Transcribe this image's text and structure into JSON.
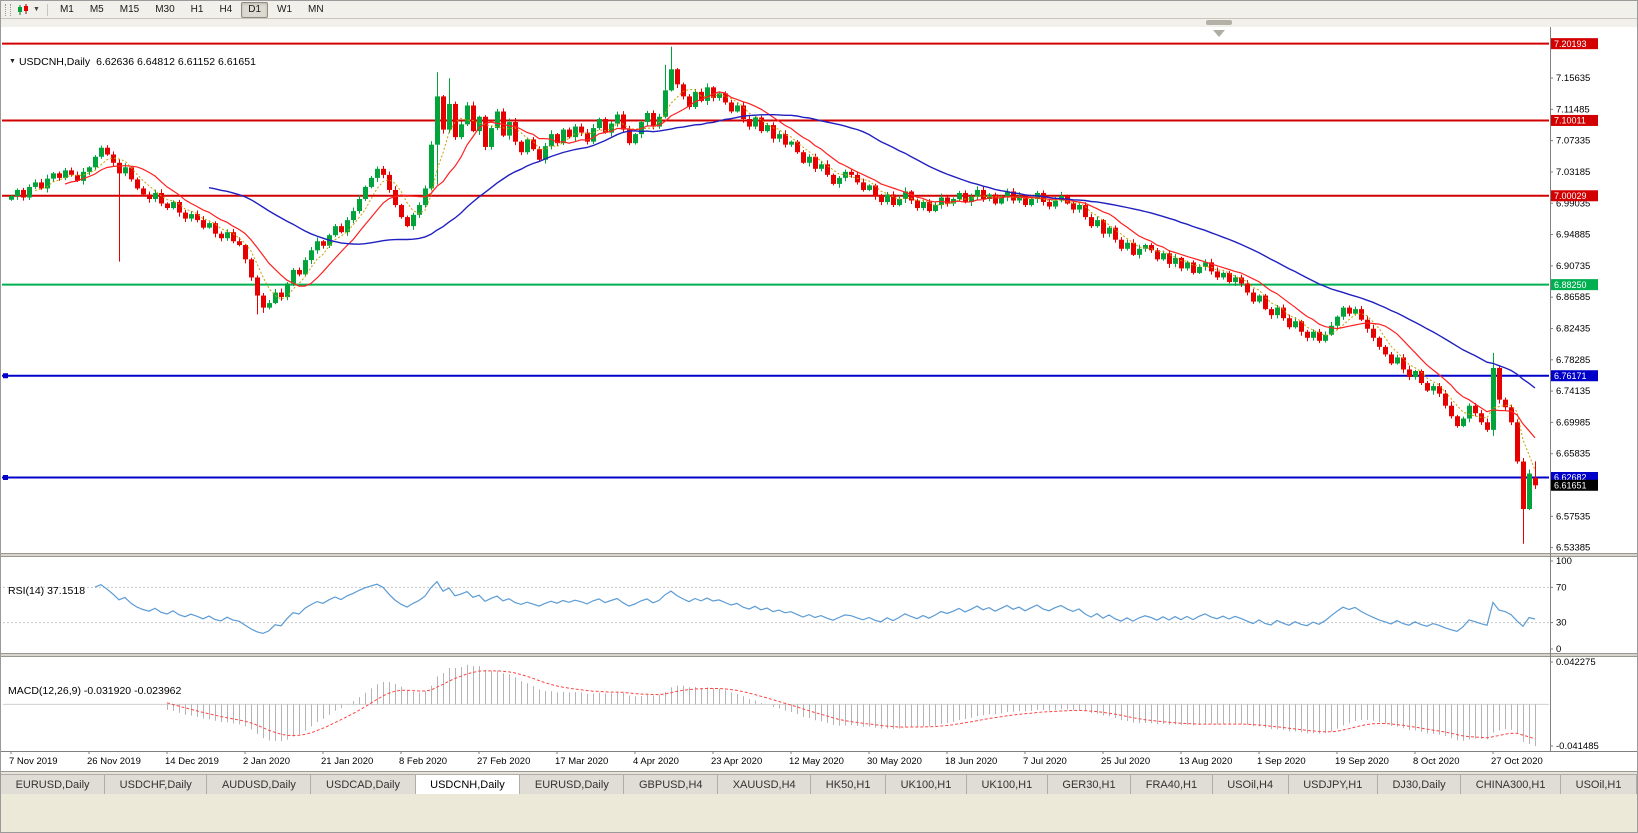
{
  "toolbar": {
    "timeframes": [
      "M1",
      "M5",
      "M15",
      "M30",
      "H1",
      "H4",
      "D1",
      "W1",
      "MN"
    ],
    "active_timeframe": "D1"
  },
  "header": {
    "symbol_period": "USDCNH,Daily",
    "ohlc": "6.62636 6.64812 6.61152 6.61651"
  },
  "rsi_panel": {
    "label": "RSI(14) 37.1518",
    "levels": [
      "100",
      "70",
      "30",
      "0"
    ],
    "level_values": [
      100,
      70,
      30,
      0
    ]
  },
  "macd_panel": {
    "label": "MACD(12,26,9) -0.031920 -0.023962",
    "axis_max_label": "0.042275",
    "axis_min_label": "-0.041485",
    "axis_max": 0.042275,
    "axis_min": -0.041485
  },
  "colors": {
    "up": "#00A43B",
    "down": "#E60000",
    "ma_fast": "#FF2020",
    "ma_dotted": "#C8A000",
    "ma_slow": "#2020C0",
    "rsi_line": "#5B9BD5",
    "macd_hist": "#B4B4B4",
    "macd_signal": "#FF4444",
    "level_red": "#D20000",
    "level_green": "#00B050",
    "level_blue": "#0000C8",
    "current_tag_bg": "#000000"
  },
  "chart_data": {
    "type": "candlestick",
    "symbol": "USDCNH",
    "timeframe": "Daily",
    "last_ohlc": {
      "open": 6.62636,
      "high": 6.64812,
      "low": 6.61152,
      "close": 6.61651
    },
    "ylim": [
      6.5267,
      7.224
    ],
    "price_axis_labels": [
      "7.15635",
      "7.11485",
      "7.07335",
      "7.03185",
      "6.99035",
      "6.94885",
      "6.90735",
      "6.86585",
      "6.82435",
      "6.78285",
      "6.74135",
      "6.69985",
      "6.65835",
      "6.61685",
      "6.57535",
      "6.53385"
    ],
    "x_labels": [
      "7 Nov 2019",
      "26 Nov 2019",
      "14 Dec 2019",
      "2 Jan 2020",
      "21 Jan 2020",
      "8 Feb 2020",
      "27 Feb 2020",
      "17 Mar 2020",
      "4 Apr 2020",
      "23 Apr 2020",
      "12 May 2020",
      "30 May 2020",
      "18 Jun 2020",
      "7 Jul 2020",
      "25 Jul 2020",
      "13 Aug 2020",
      "1 Sep 2020",
      "19 Sep 2020",
      "8 Oct 2020",
      "27 Oct 2020"
    ],
    "x_label_interval": 13,
    "first_open": 6.995,
    "closes": [
      7.0,
      7.008,
      6.998,
      7.012,
      7.018,
      7.01,
      7.023,
      7.03,
      7.024,
      7.034,
      7.028,
      7.02,
      7.032,
      7.038,
      7.052,
      7.064,
      7.055,
      7.044,
      7.03,
      7.038,
      7.022,
      7.01,
      7.002,
      6.996,
      7.004,
      6.99,
      6.984,
      6.992,
      6.978,
      6.97,
      6.976,
      6.968,
      6.958,
      6.964,
      6.95,
      6.944,
      6.952,
      6.94,
      6.935,
      6.916,
      6.892,
      6.868,
      6.852,
      6.858,
      6.872,
      6.866,
      6.884,
      6.902,
      6.896,
      6.915,
      6.928,
      6.94,
      6.934,
      6.948,
      6.96,
      6.952,
      6.968,
      6.98,
      6.996,
      7.012,
      7.024,
      7.036,
      7.028,
      7.008,
      6.988,
      6.972,
      6.96,
      6.975,
      6.988,
      7.01,
      7.068,
      7.132,
      7.088,
      7.122,
      7.078,
      7.095,
      7.12,
      7.086,
      7.105,
      7.065,
      7.09,
      7.112,
      7.08,
      7.098,
      7.072,
      7.058,
      7.075,
      7.062,
      7.048,
      7.066,
      7.082,
      7.07,
      7.088,
      7.078,
      7.092,
      7.084,
      7.072,
      7.09,
      7.102,
      7.084,
      7.096,
      7.108,
      7.088,
      7.07,
      7.082,
      7.098,
      7.11,
      7.092,
      7.105,
      7.14,
      7.168,
      7.148,
      7.132,
      7.118,
      7.138,
      7.126,
      7.144,
      7.13,
      7.136,
      7.124,
      7.112,
      7.12,
      7.102,
      7.092,
      7.104,
      7.086,
      7.094,
      7.076,
      7.082,
      7.068,
      7.072,
      7.058,
      7.044,
      7.052,
      7.036,
      7.042,
      7.028,
      7.016,
      7.024,
      7.032,
      7.028,
      7.018,
      7.008,
      7.014,
      7.0,
      6.992,
      7.002,
      6.988,
      6.996,
      7.006,
      6.994,
      6.984,
      6.992,
      6.98,
      6.988,
      6.998,
      6.99,
      6.996,
      7.004,
      6.992,
      6.999,
      7.008,
      6.996,
      7.002,
      6.99,
      6.998,
      7.006,
      6.994,
      7.0,
      6.988,
      6.996,
      7.004,
      6.992,
      6.986,
      6.994,
      7.0,
      6.99,
      6.982,
      6.988,
      6.972,
      6.96,
      6.968,
      6.95,
      6.958,
      6.942,
      6.93,
      6.938,
      6.922,
      6.93,
      6.935,
      6.928,
      6.916,
      6.924,
      6.91,
      6.918,
      6.904,
      6.912,
      6.898,
      6.906,
      6.912,
      6.9,
      6.892,
      6.898,
      6.886,
      6.892,
      6.884,
      6.872,
      6.86,
      6.868,
      6.85,
      6.842,
      6.852,
      6.838,
      6.826,
      6.834,
      6.82,
      6.812,
      6.82,
      6.808,
      6.816,
      6.828,
      6.84,
      6.852,
      6.844,
      6.85,
      6.836,
      6.824,
      6.812,
      6.8,
      6.79,
      6.778,
      6.786,
      6.77,
      6.76,
      6.768,
      6.752,
      6.742,
      6.748,
      6.738,
      6.722,
      6.708,
      6.695,
      6.705,
      6.722,
      6.712,
      6.7,
      6.69,
      6.772,
      6.73,
      6.72,
      6.7,
      6.648,
      6.585,
      6.632,
      6.6165
    ],
    "overrides": [
      {
        "i": 18,
        "low": 6.913
      },
      {
        "i": 41,
        "low": 6.843
      },
      {
        "i": 42,
        "low": 6.845
      },
      {
        "i": 71,
        "high": 7.164,
        "low": 7.015
      },
      {
        "i": 73,
        "high": 7.156
      },
      {
        "i": 109,
        "high": 7.174
      },
      {
        "i": 110,
        "high": 7.198
      },
      {
        "i": 247,
        "high": 6.792,
        "low": 6.682
      },
      {
        "i": 252,
        "low": 6.539
      },
      {
        "i": 254,
        "open": 6.62636,
        "high": 6.64812,
        "low": 6.61152
      }
    ],
    "hlines": [
      {
        "price": 7.20193,
        "label": "7.20193",
        "color": "#D20000"
      },
      {
        "price": 7.10011,
        "label": "7.10011",
        "color": "#D20000"
      },
      {
        "price": 7.00029,
        "label": "7.00029",
        "color": "#D20000"
      },
      {
        "price": 6.8825,
        "label": "6.88250",
        "color": "#00B050"
      },
      {
        "price": 6.76171,
        "label": "6.76171",
        "color": "#0000C8",
        "handle": true
      },
      {
        "price": 6.62682,
        "label": "6.62682",
        "color": "#0000C8",
        "handle": true
      }
    ],
    "current_price": {
      "value": 6.61651,
      "label": "6.61651"
    }
  },
  "tabs": {
    "active_index": 4,
    "items": [
      "EURUSD,Daily",
      "USDCHF,Daily",
      "AUDUSD,Daily",
      "USDCAD,Daily",
      "USDCNH,Daily",
      "EURUSD,Daily",
      "GBPUSD,H4",
      "XAUUSD,H4",
      "HK50,H1",
      "UK100,H1",
      "UK100,H1",
      "GER30,H1",
      "FRA40,H1",
      "USOil,H4",
      "USDJPY,H1",
      "DJ30,Daily",
      "CHINA300,H1",
      "USOil,H1"
    ]
  }
}
